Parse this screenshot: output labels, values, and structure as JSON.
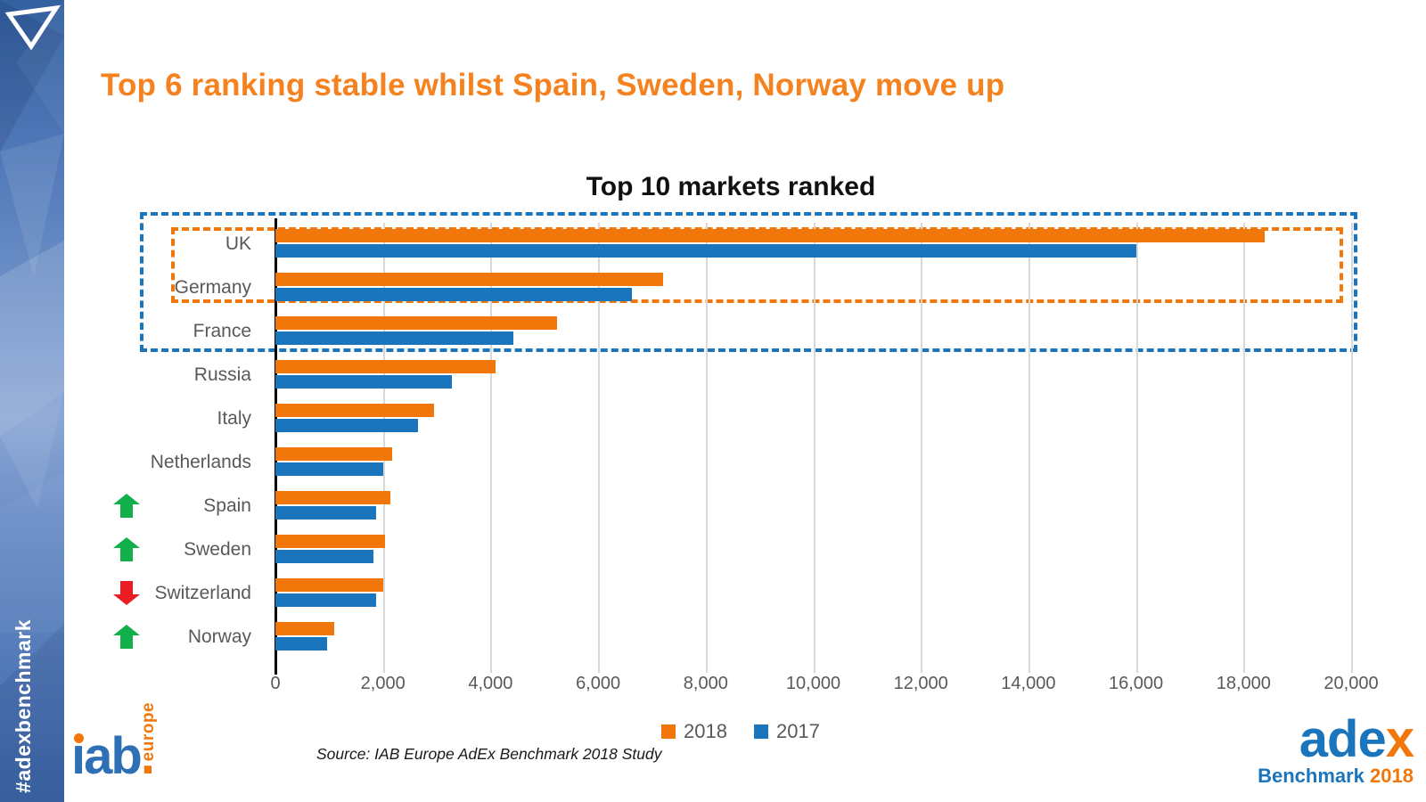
{
  "sidebar": {
    "hashtag": "#adexbenchmark"
  },
  "header": {
    "title": "Top 6 ranking stable whilst Spain, Sweden, Norway move up"
  },
  "chart_data": {
    "type": "bar",
    "orientation": "horizontal",
    "title": "Top 10 markets ranked",
    "categories": [
      "UK",
      "Germany",
      "France",
      "Russia",
      "Italy",
      "Netherlands",
      "Spain",
      "Sweden",
      "Switzerland",
      "Norway"
    ],
    "series": [
      {
        "name": "2018",
        "color": "#F2770A",
        "values": [
          18400,
          7200,
          5240,
          4100,
          2950,
          2170,
          2140,
          2040,
          2000,
          1090
        ]
      },
      {
        "name": "2017",
        "color": "#1B75BC",
        "values": [
          16000,
          6630,
          4430,
          3280,
          2650,
          2000,
          1870,
          1820,
          1870,
          960
        ]
      }
    ],
    "xlim": [
      0,
      20000
    ],
    "x_ticks": [
      "0",
      "2,000",
      "4,000",
      "6,000",
      "8,000",
      "10,000",
      "12,000",
      "14,000",
      "16,000",
      "18,000",
      "20,000"
    ],
    "grid": true,
    "legend_position": "bottom",
    "trends": [
      null,
      null,
      null,
      null,
      null,
      null,
      "up",
      "up",
      "down",
      "up"
    ],
    "annotations": [
      {
        "name": "top-3-highlight",
        "style": "dashed-box",
        "color": "#1B75BC",
        "covers": [
          "UK",
          "Germany",
          "France"
        ]
      },
      {
        "name": "top-2-highlight",
        "style": "dashed-box",
        "color": "#F2770A",
        "covers": [
          "UK",
          "Germany"
        ]
      }
    ]
  },
  "footer": {
    "source_note": "Source: IAB Europe AdEx Benchmark 2018 Study",
    "iab_logo": {
      "word": "iab",
      "dot": ".",
      "sub": "europe"
    },
    "adex_logo": {
      "word_blue": "ade",
      "word_orange": "x",
      "sub_blue": "Benchmark",
      "sub_orange": "2018"
    }
  },
  "colors": {
    "title_orange": "#F5821F",
    "accent_orange": "#F2770A",
    "accent_blue": "#1B75BC",
    "text_gray": "#595959",
    "up_green": "#13AF4B",
    "down_red": "#EC1C24",
    "gridline": "#D8D8D8"
  }
}
